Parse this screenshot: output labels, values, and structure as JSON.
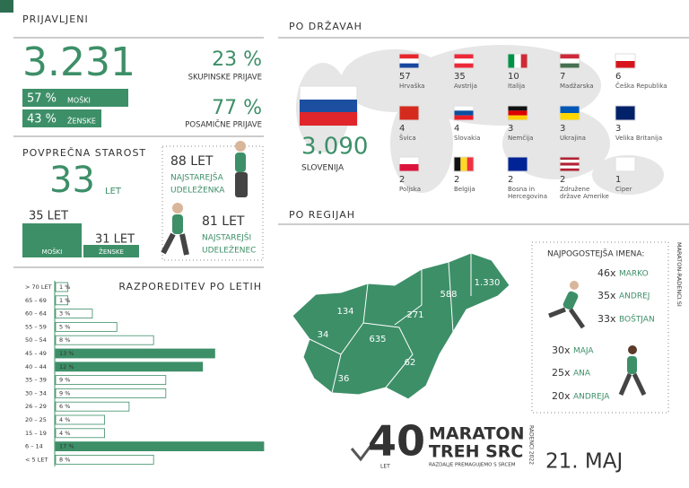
{
  "registered": {
    "title": "PRIJAVLJENI",
    "total": "3.231",
    "group_share": "23 %",
    "group_label": "SKUPINSKE PRIJAVE",
    "individual_share": "77 %",
    "individual_label": "POSAMIČNE PRIJAVE",
    "men_share": "57 %",
    "men_label": "MOŠKI",
    "women_share": "43 %",
    "women_label": "ŽENSKE"
  },
  "age": {
    "title": "POVPREČNA STAROST",
    "average": "33",
    "unit": "LET",
    "men_average": "35 LET",
    "men_label": "MOŠKI",
    "women_average": "31 LET",
    "women_label": "ŽENSKE",
    "oldest_woman_age": "88 LET",
    "oldest_woman_label_1": "NAJSTAREJŠA",
    "oldest_woman_label_2": "UDELEŽENKA",
    "oldest_man_age": "81 LET",
    "oldest_man_label_1": "NAJSTAREJŠI",
    "oldest_man_label_2": "UDELEŽENEC"
  },
  "chart_data": {
    "type": "bar",
    "orientation": "horizontal",
    "title": "RAZPOREDITEV PO LETIH",
    "categories": [
      "> 70 LET",
      "65 – 69",
      "60 – 64",
      "55 – 59",
      "50 – 54",
      "45 – 49",
      "40 – 44",
      "35 – 39",
      "30 – 34",
      "26 – 29",
      "20 – 25",
      "15 – 19",
      "6 – 14",
      "< 5 LET"
    ],
    "values": [
      1,
      1,
      3,
      5,
      8,
      13,
      12,
      9,
      9,
      6,
      4,
      4,
      17,
      8
    ],
    "value_labels": [
      "1 %",
      "1 %",
      "3 %",
      "5 %",
      "8 %",
      "13 %",
      "12 %",
      "9 %",
      "9 %",
      "6 %",
      "4 %",
      "4 %",
      "17 %",
      "8 %"
    ],
    "colors": [
      "#ffffff",
      "#ffffff",
      "#ffffff",
      "#ffffff",
      "#ffffff",
      "#3d8f68",
      "#3d8f68",
      "#ffffff",
      "#ffffff",
      "#ffffff",
      "#ffffff",
      "#ffffff",
      "#3d8f68",
      "#ffffff"
    ]
  },
  "countries": {
    "title": "PO DRŽAVAH",
    "home_count": "3.090",
    "home_name": "SLOVENIJA",
    "items": [
      {
        "count": "57",
        "name": "Hrvaška"
      },
      {
        "count": "35",
        "name": "Avstrija"
      },
      {
        "count": "10",
        "name": "Italija"
      },
      {
        "count": "7",
        "name": "Madžarska"
      },
      {
        "count": "6",
        "name": "Češka Republika"
      },
      {
        "count": "4",
        "name": "Švica"
      },
      {
        "count": "4",
        "name": "Slovakia"
      },
      {
        "count": "3",
        "name": "Nemčija"
      },
      {
        "count": "3",
        "name": "Ukrajina"
      },
      {
        "count": "3",
        "name": "Velika Britanija"
      },
      {
        "count": "2",
        "name": "Poljska"
      },
      {
        "count": "2",
        "name": "Belgija"
      },
      {
        "count": "2",
        "name": "Bosna in Hercegovina"
      },
      {
        "count": "2",
        "name": "Združene države Amerike"
      },
      {
        "count": "1",
        "name": "Ciper"
      }
    ]
  },
  "regions": {
    "title": "PO REGIJAH",
    "values": [
      "588",
      "1.330",
      "134",
      "271",
      "34",
      "635",
      "62",
      "36"
    ]
  },
  "names": {
    "title": "NAJPOGOSTEJŠA IMENA:",
    "items": [
      {
        "count": "46x",
        "name": "MARKO"
      },
      {
        "count": "35x",
        "name": "ANDREJ"
      },
      {
        "count": "33x",
        "name": "BOŠTJAN"
      },
      {
        "count": "30x",
        "name": "MAJA"
      },
      {
        "count": "25x",
        "name": "ANA"
      },
      {
        "count": "20x",
        "name": "ANDREJA"
      }
    ]
  },
  "footer": {
    "number": "40",
    "number_unit": "LET",
    "line_1": "MARATON",
    "line_2": "TREH SRC",
    "slogan": "RAZDALJE PREMAGUJEMO S SRCEM",
    "edition": "RADENCI 2022",
    "date": "21. MAJ",
    "website": "MARATON-RADENCI.SI"
  }
}
